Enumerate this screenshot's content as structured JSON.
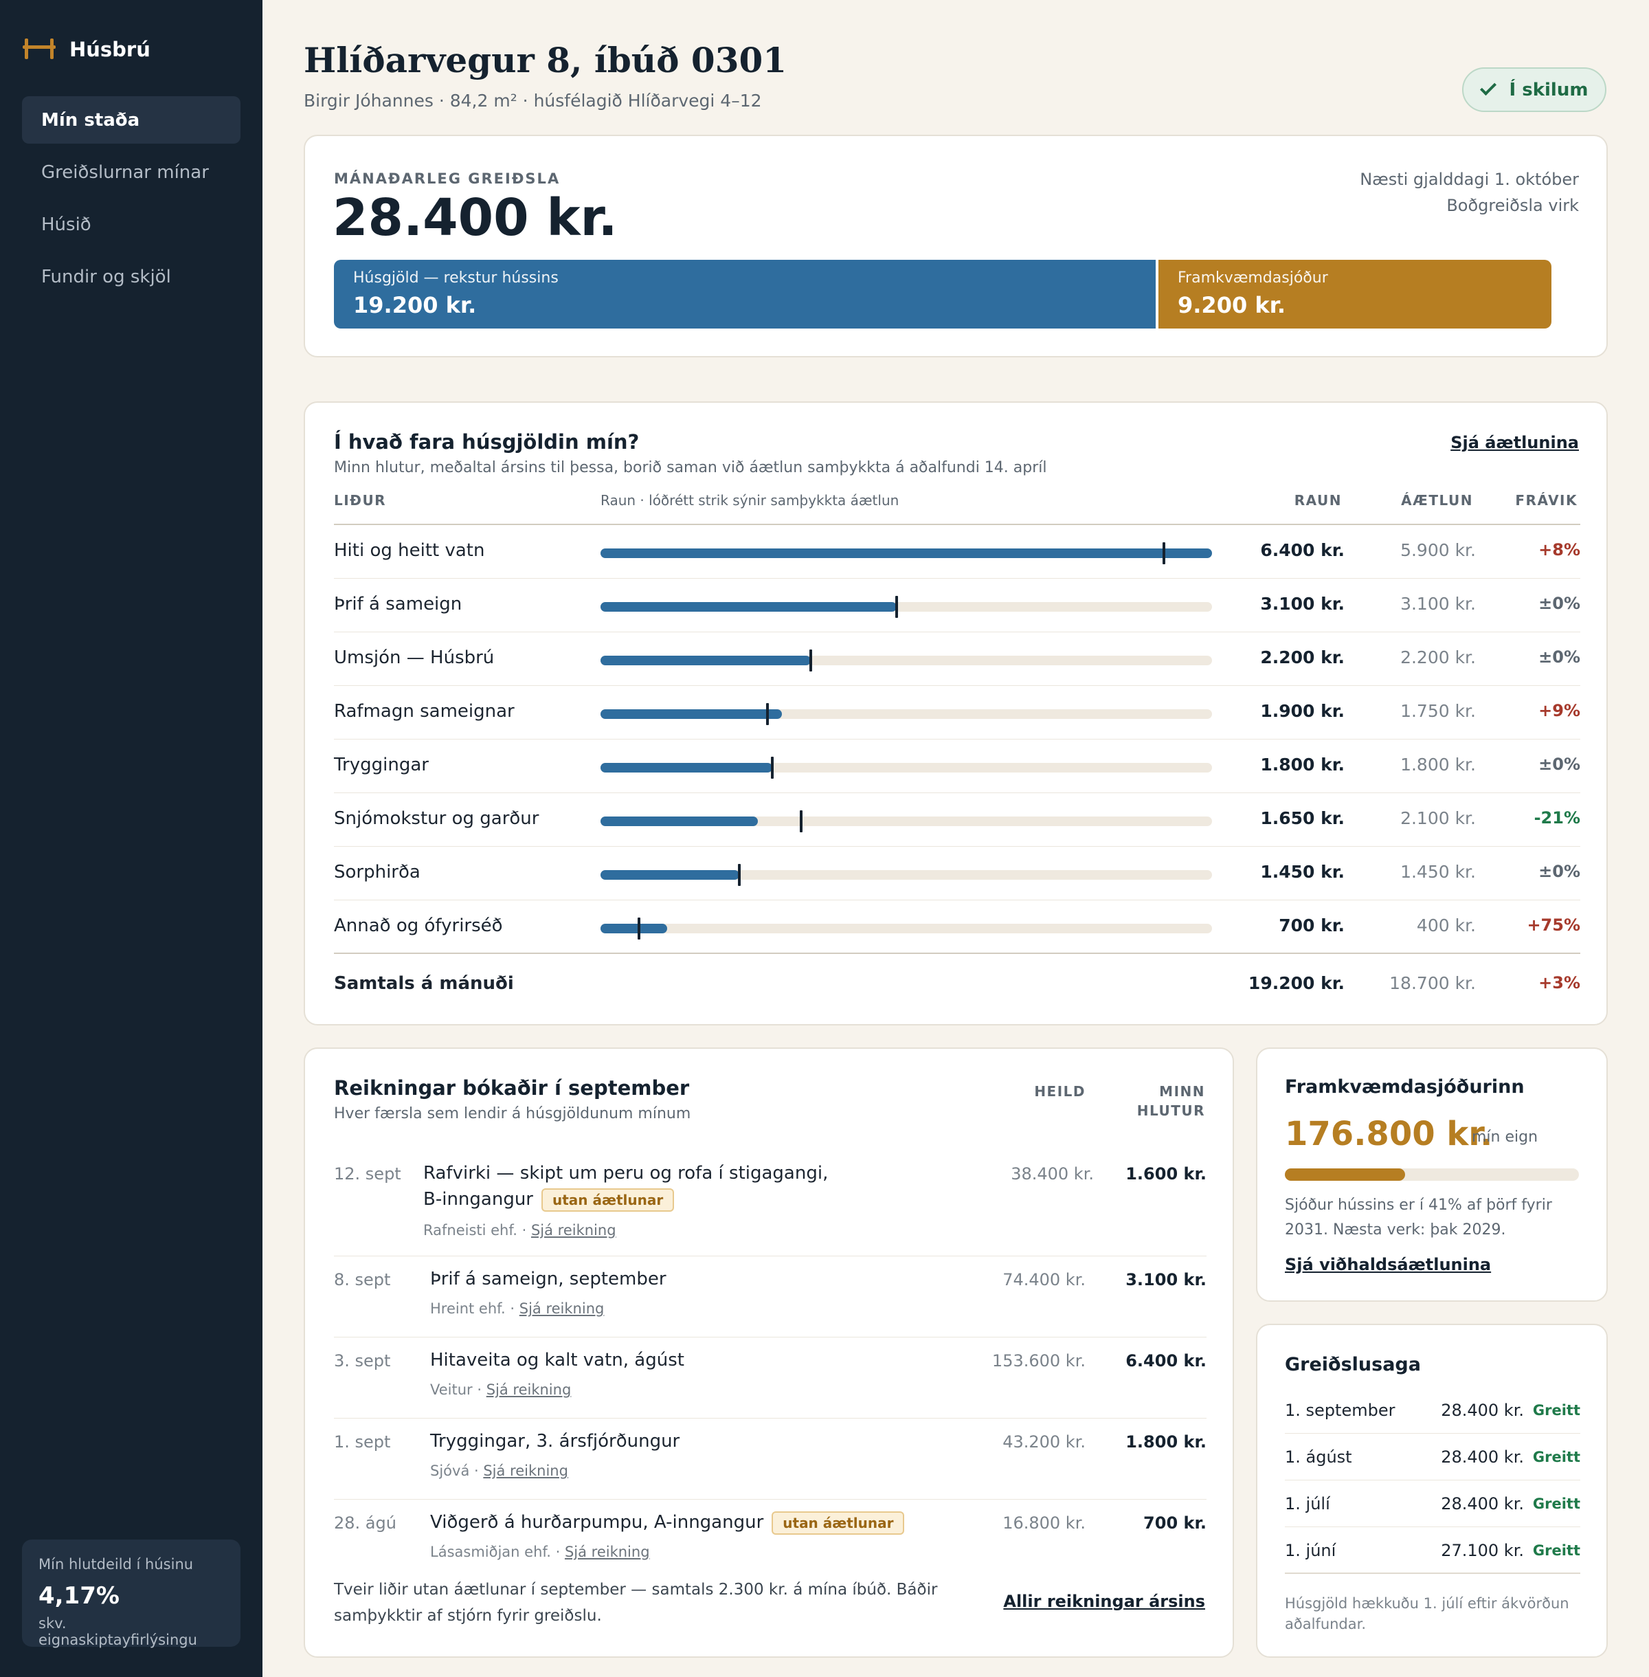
{
  "sidebar": {
    "brand": "Húsbrú",
    "items": [
      {
        "label": "Mín staða",
        "active": true
      },
      {
        "label": "Greiðslurnar mínar",
        "active": false
      },
      {
        "label": "Húsið",
        "active": false
      },
      {
        "label": "Fundir og skjöl",
        "active": false
      }
    ],
    "share": {
      "label": "Mín hlutdeild í húsinu",
      "value": "4,17%",
      "sub": "skv. eignaskiptayfirlýsingu"
    }
  },
  "header": {
    "title": "Hlíðarvegur 8, íbúð 0301",
    "subtitle": "Birgir Jóhannes · 84,2 m² · húsfélagið Hlíðarvegi 4–12",
    "status": "Í skilum"
  },
  "payment": {
    "label": "MÁNAÐARLEG GREIÐSLA",
    "amount": "28.400 kr.",
    "next_due": "Næsti gjalddagi 1. október",
    "method": "Boðgreiðsla virk",
    "segments": [
      {
        "label": "Húsgjöld — rekstur hússins",
        "value": "19.200 kr.",
        "amount": 19200
      },
      {
        "label": "Framkvæmdasjóður",
        "value": "9.200 kr.",
        "amount": 9200
      }
    ]
  },
  "budget": {
    "title": "Í hvað fara húsgjöldin mín?",
    "subtitle": "Minn hlutur, meðaltal ársins til þessa, borið saman við áætlun samþykkta á aðalfundi 14. apríl",
    "link": "Sjá áætlunina",
    "columns": {
      "item": "LIÐUR",
      "note": "Raun · lóðrétt strik sýnir samþykkta áætlun",
      "actual": "RAUN",
      "plan": "ÁÆTLUN",
      "dev": "FRÁVIK"
    },
    "rows": [
      {
        "name": "Hiti og heitt vatn",
        "actual": 6400,
        "plan": 5900,
        "actual_label": "6.400 kr.",
        "plan_label": "5.900 kr.",
        "dev": "+8%",
        "dev_type": "pos"
      },
      {
        "name": "Þrif á sameign",
        "actual": 3100,
        "plan": 3100,
        "actual_label": "3.100 kr.",
        "plan_label": "3.100 kr.",
        "dev": "±0%",
        "dev_type": "zero"
      },
      {
        "name": "Umsjón — Húsbrú",
        "actual": 2200,
        "plan": 2200,
        "actual_label": "2.200 kr.",
        "plan_label": "2.200 kr.",
        "dev": "±0%",
        "dev_type": "zero"
      },
      {
        "name": "Rafmagn sameignar",
        "actual": 1900,
        "plan": 1750,
        "actual_label": "1.900 kr.",
        "plan_label": "1.750 kr.",
        "dev": "+9%",
        "dev_type": "pos"
      },
      {
        "name": "Tryggingar",
        "actual": 1800,
        "plan": 1800,
        "actual_label": "1.800 kr.",
        "plan_label": "1.800 kr.",
        "dev": "±0%",
        "dev_type": "zero"
      },
      {
        "name": "Snjómokstur og garður",
        "actual": 1650,
        "plan": 2100,
        "actual_label": "1.650 kr.",
        "plan_label": "2.100 kr.",
        "dev": "-21%",
        "dev_type": "neg"
      },
      {
        "name": "Sorphirða",
        "actual": 1450,
        "plan": 1450,
        "actual_label": "1.450 kr.",
        "plan_label": "1.450 kr.",
        "dev": "±0%",
        "dev_type": "zero"
      },
      {
        "name": "Annað og ófyrirséð",
        "actual": 700,
        "plan": 400,
        "actual_label": "700 kr.",
        "plan_label": "400 kr.",
        "dev": "+75%",
        "dev_type": "pos"
      }
    ],
    "scale_max": 6400,
    "total": {
      "name": "Samtals á mánuði",
      "actual": "19.200 kr.",
      "plan": "18.700 kr.",
      "dev": "+3%"
    }
  },
  "invoices": {
    "title": "Reikningar bókaðir í september",
    "subtitle": "Hver færsla sem lendir á húsgjöldunum mínum",
    "col_total": "HEILD",
    "col_mine_1": "MINN",
    "col_mine_2": "HLUTUR",
    "rows": [
      {
        "date": "12. sept",
        "desc": "Rafvirki — skipt um peru og rofa í stigagangi, B-inngangur",
        "badge": "utan áætlunar",
        "vendor": "Rafneisti ehf.",
        "link": "Sjá reikning",
        "total": "38.400 kr.",
        "mine": "1.600 kr."
      },
      {
        "date": "8. sept",
        "desc": "Þrif á sameign, september",
        "badge": "",
        "vendor": "Hreint ehf.",
        "link": "Sjá reikning",
        "total": "74.400 kr.",
        "mine": "3.100 kr."
      },
      {
        "date": "3. sept",
        "desc": "Hitaveita og kalt vatn, ágúst",
        "badge": "",
        "vendor": "Veitur",
        "link": "Sjá reikning",
        "total": "153.600 kr.",
        "mine": "6.400 kr."
      },
      {
        "date": "1. sept",
        "desc": "Tryggingar, 3. ársfjórðungur",
        "badge": "",
        "vendor": "Sjóvá",
        "link": "Sjá reikning",
        "total": "43.200 kr.",
        "mine": "1.800 kr."
      },
      {
        "date": "28. ágú",
        "desc": "Viðgerð á hurðarpumpu, A-inngangur",
        "badge": "utan áætlunar",
        "vendor": "Lásasmiðjan ehf.",
        "link": "Sjá reikning",
        "total": "16.800 kr.",
        "mine": "700 kr."
      }
    ],
    "footnote": "Tveir liðir utan áætlunar í september — samtals 2.300 kr. á mína íbúð. Báðir samþykktir af stjórn fyrir greiðslu.",
    "footer_link": "Allir reikningar ársins"
  },
  "fund": {
    "title": "Framkvæmdasjóðurinn",
    "amount": "176.800 kr.",
    "own_label": "mín eign",
    "progress": 0.41,
    "text": "Sjóður hússins er í 41% af þörf fyrir 2031. Næsta verk: þak 2029.",
    "link": "Sjá viðhaldsáætlunina"
  },
  "history": {
    "title": "Greiðslusaga",
    "rows": [
      {
        "date": "1. september",
        "amount": "28.400 kr.",
        "status": "Greitt"
      },
      {
        "date": "1. ágúst",
        "amount": "28.400 kr.",
        "status": "Greitt"
      },
      {
        "date": "1. júlí",
        "amount": "28.400 kr.",
        "status": "Greitt"
      },
      {
        "date": "1. júní",
        "amount": "27.100 kr.",
        "status": "Greitt"
      }
    ],
    "note": "Húsgjöld hækkuðu 1. júlí eftir ákvörðun aðalfundar."
  },
  "colors": {
    "accent_blue": "#2f6d9e",
    "accent_gold": "#b67e22",
    "sidebar_bg": "#15222f",
    "ok_green": "#1f7a4a",
    "warn_red": "#a63a2c"
  }
}
